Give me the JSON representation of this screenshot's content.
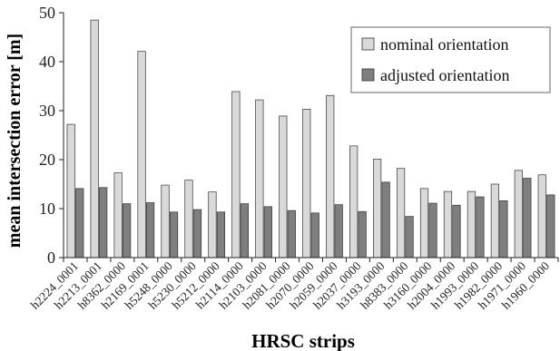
{
  "chart_data": {
    "type": "bar",
    "xlabel": "HRSC strips",
    "ylabel": "mean intersection error [m]",
    "ylim": [
      0,
      50
    ],
    "yticks": [
      0,
      10,
      20,
      30,
      40,
      50
    ],
    "grid": false,
    "legend_position": "top-right",
    "categories": [
      "h2224_0001",
      "h2213_0001",
      "h8362_0000",
      "h2169_0001",
      "h5248_0000",
      "h5230_0000",
      "h5212_0000",
      "h2114_0000",
      "h2103_0000",
      "h2081_0000",
      "h2070_0000",
      "h2059_0000",
      "h2037_0000",
      "h3193_0000",
      "h8383_0000",
      "h3160_0000",
      "h2004_0000",
      "h1993_0000",
      "h1982_0000",
      "h1971_0000",
      "h1960_0000"
    ],
    "series": [
      {
        "name": "nominal orientation",
        "color": "#d9d9d9",
        "values": [
          27.2,
          48.5,
          17.3,
          42.1,
          14.8,
          15.8,
          13.4,
          33.9,
          32.2,
          28.9,
          30.3,
          33.1,
          22.8,
          20.1,
          18.2,
          14.1,
          13.5,
          13.5,
          15.0,
          17.8,
          16.9
        ]
      },
      {
        "name": "adjusted orientation",
        "color": "#7f7f7f",
        "values": [
          14.1,
          14.3,
          11.0,
          11.2,
          9.3,
          9.8,
          9.3,
          11.0,
          10.4,
          9.6,
          9.1,
          10.8,
          9.4,
          15.4,
          8.4,
          11.1,
          10.7,
          12.4,
          11.6,
          16.2,
          12.8
        ]
      }
    ]
  }
}
